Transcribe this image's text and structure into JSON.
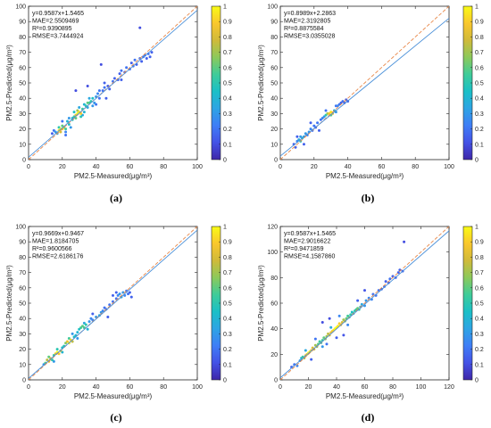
{
  "colormap": {
    "stops": [
      "#3e26a8",
      "#4452e6",
      "#3f7df6",
      "#2ea4e4",
      "#1bbfc7",
      "#3fcc99",
      "#8cc95b",
      "#d0ba3a",
      "#f9c72d",
      "#f9fb15"
    ],
    "tick_labels": [
      "0",
      "0.1",
      "0.2",
      "0.3",
      "0.4",
      "0.5",
      "0.6",
      "0.7",
      "0.8",
      "0.9",
      "1"
    ]
  },
  "line_colors": {
    "fit": "#4a90d9",
    "identity": "#e8884a"
  },
  "chart_data": [
    {
      "type": "scatter",
      "panel_label": "(a)",
      "xlabel": "PM2.5-Measured(μg/m³)",
      "ylabel": "PM2.5-Predicted(μg/m³)",
      "xlim": [
        0,
        100
      ],
      "ylim": [
        0,
        100
      ],
      "xticks": [
        0,
        20,
        40,
        60,
        80,
        100
      ],
      "yticks": [
        0,
        10,
        20,
        30,
        40,
        50,
        60,
        70,
        80,
        90,
        100
      ],
      "stats": [
        "y=0.9587x+1.5465",
        "MAE=2.5509469",
        "R²=0.9390895",
        "RMSE=3.7444924"
      ],
      "fit": {
        "slope": 0.9587,
        "intercept": 1.5465
      },
      "identity_line": true,
      "points": [
        [
          17,
          17,
          0.35
        ],
        [
          18,
          19,
          0.95
        ],
        [
          19,
          20,
          1.0
        ],
        [
          20,
          20,
          0.9
        ],
        [
          21,
          21,
          0.7
        ],
        [
          19,
          18,
          0.8
        ],
        [
          22,
          20,
          0.55
        ],
        [
          20,
          22,
          0.6
        ],
        [
          24,
          23,
          0.45
        ],
        [
          23,
          25,
          0.4
        ],
        [
          18,
          21,
          0.5
        ],
        [
          16,
          18,
          0.3
        ],
        [
          15,
          19,
          0.2
        ],
        [
          22,
          18,
          0.25
        ],
        [
          25,
          21,
          0.3
        ],
        [
          26,
          27,
          0.4
        ],
        [
          27,
          28,
          0.55
        ],
        [
          28,
          29,
          0.85
        ],
        [
          29,
          30,
          1.0
        ],
        [
          30,
          31,
          0.95
        ],
        [
          31,
          30,
          0.9
        ],
        [
          29,
          32,
          0.7
        ],
        [
          32,
          33,
          0.55
        ],
        [
          28,
          27,
          0.6
        ],
        [
          31,
          28,
          0.5
        ],
        [
          27,
          31,
          0.45
        ],
        [
          33,
          31,
          0.4
        ],
        [
          30,
          34,
          0.35
        ],
        [
          34,
          35,
          0.5
        ],
        [
          35,
          37,
          0.6
        ],
        [
          36,
          37,
          0.55
        ],
        [
          37,
          38,
          0.5
        ],
        [
          38,
          40,
          0.45
        ],
        [
          35,
          34,
          0.35
        ],
        [
          39,
          37,
          0.3
        ],
        [
          36,
          40,
          0.35
        ],
        [
          33,
          36,
          0.4
        ],
        [
          40,
          41,
          0.3
        ],
        [
          41,
          43,
          0.25
        ],
        [
          42,
          40,
          0.2
        ],
        [
          44,
          45,
          0.2
        ],
        [
          45,
          47,
          0.2
        ],
        [
          47,
          48,
          0.15
        ],
        [
          48,
          46,
          0.15
        ],
        [
          50,
          51,
          0.2
        ],
        [
          51,
          53,
          0.15
        ],
        [
          53,
          52,
          0.15
        ],
        [
          54,
          56,
          0.15
        ],
        [
          55,
          58,
          0.2
        ],
        [
          57,
          57,
          0.15
        ],
        [
          58,
          60,
          0.2
        ],
        [
          60,
          59,
          0.2
        ],
        [
          61,
          63,
          0.15
        ],
        [
          62,
          61,
          0.2
        ],
        [
          63,
          65,
          0.2
        ],
        [
          64,
          62,
          0.15
        ],
        [
          66,
          66,
          0.2
        ],
        [
          67,
          64,
          0.15
        ],
        [
          68,
          67,
          0.2
        ],
        [
          69,
          68,
          0.2
        ],
        [
          70,
          66,
          0.15
        ],
        [
          71,
          69,
          0.2
        ],
        [
          72,
          67,
          0.15
        ],
        [
          73,
          70,
          0.15
        ],
        [
          66,
          86,
          0.1
        ],
        [
          43,
          62,
          0.1
        ],
        [
          35,
          48,
          0.1
        ],
        [
          28,
          45,
          0.1
        ],
        [
          26,
          26,
          0.45
        ],
        [
          24,
          27,
          0.3
        ],
        [
          32,
          29,
          0.35
        ],
        [
          38,
          35,
          0.3
        ],
        [
          46,
          40,
          0.15
        ],
        [
          40,
          36,
          0.2
        ],
        [
          14,
          17,
          0.15
        ],
        [
          22,
          16,
          0.2
        ],
        [
          20,
          25,
          0.2
        ],
        [
          42,
          45,
          0.2
        ],
        [
          55,
          52,
          0.15
        ],
        [
          45,
          50,
          0.15
        ]
      ]
    },
    {
      "type": "scatter",
      "panel_label": "(b)",
      "xlabel": "PM2.5-Measured(μg/m³)",
      "ylabel": "PM2.5-Predicted(μg/m³)",
      "xlim": [
        0,
        100
      ],
      "ylim": [
        0,
        100
      ],
      "xticks": [
        0,
        20,
        40,
        60,
        80,
        100
      ],
      "yticks": [
        0,
        10,
        20,
        30,
        40,
        50,
        60,
        70,
        80,
        90,
        100
      ],
      "stats": [
        "y=0.8989x+2.2863",
        "MAE=2.3192805",
        "R²=0.8875584",
        "RMSE=3.0355028"
      ],
      "fit": {
        "slope": 0.8989,
        "intercept": 2.2863
      },
      "identity_line": true,
      "points": [
        [
          8,
          10,
          0.15
        ],
        [
          10,
          12,
          0.25
        ],
        [
          11,
          13,
          0.35
        ],
        [
          12,
          12,
          0.45
        ],
        [
          13,
          14,
          0.4
        ],
        [
          14,
          15,
          0.35
        ],
        [
          12,
          15,
          0.3
        ],
        [
          15,
          17,
          0.3
        ],
        [
          16,
          16,
          0.25
        ],
        [
          17,
          18,
          0.3
        ],
        [
          18,
          20,
          0.25
        ],
        [
          19,
          19,
          0.2
        ],
        [
          20,
          22,
          0.2
        ],
        [
          21,
          21,
          0.15
        ],
        [
          22,
          24,
          0.2
        ],
        [
          24,
          26,
          0.2
        ],
        [
          25,
          27,
          0.25
        ],
        [
          26,
          28,
          0.3
        ],
        [
          27,
          29,
          0.5
        ],
        [
          28,
          30,
          0.7
        ],
        [
          29,
          30,
          0.9
        ],
        [
          30,
          31,
          0.95
        ],
        [
          31,
          30,
          0.8
        ],
        [
          30,
          29,
          0.6
        ],
        [
          32,
          32,
          0.4
        ],
        [
          33,
          31,
          0.3
        ],
        [
          34,
          35,
          0.25
        ],
        [
          35,
          36,
          0.2
        ],
        [
          36,
          37,
          0.15
        ],
        [
          37,
          38,
          0.2
        ],
        [
          38,
          37,
          0.15
        ],
        [
          40,
          38,
          0.15
        ],
        [
          39,
          39,
          0.15
        ],
        [
          14,
          10,
          0.15
        ],
        [
          9,
          8,
          0.15
        ],
        [
          18,
          24,
          0.15
        ],
        [
          23,
          19,
          0.15
        ],
        [
          33,
          35,
          0.2
        ],
        [
          27,
          32,
          0.2
        ],
        [
          10,
          15,
          0.15
        ]
      ]
    },
    {
      "type": "scatter",
      "panel_label": "(c)",
      "xlabel": "PM2.5-Measured(μg/m³)",
      "ylabel": "PM2.5-Predicted(μg/m³)",
      "xlim": [
        0,
        100
      ],
      "ylim": [
        0,
        100
      ],
      "xticks": [
        0,
        20,
        40,
        60,
        80,
        100
      ],
      "yticks": [
        0,
        10,
        20,
        30,
        40,
        50,
        60,
        70,
        80,
        90,
        100
      ],
      "stats": [
        "y=0.9669x+0.9467",
        "MAE=1.8184705",
        "R²=0.9600566",
        "RMSE=2.6186176"
      ],
      "fit": {
        "slope": 0.9669,
        "intercept": 0.9467
      },
      "identity_line": true,
      "points": [
        [
          10,
          11,
          0.6
        ],
        [
          11,
          13,
          0.75
        ],
        [
          12,
          12,
          0.85
        ],
        [
          13,
          14,
          0.8
        ],
        [
          12,
          15,
          0.6
        ],
        [
          14,
          13,
          0.5
        ],
        [
          15,
          16,
          0.55
        ],
        [
          16,
          17,
          0.85
        ],
        [
          17,
          18,
          1.0
        ],
        [
          18,
          17,
          0.9
        ],
        [
          19,
          19,
          0.7
        ],
        [
          17,
          20,
          0.5
        ],
        [
          20,
          21,
          0.45
        ],
        [
          21,
          22,
          0.5
        ],
        [
          22,
          24,
          0.65
        ],
        [
          23,
          25,
          0.85
        ],
        [
          24,
          24,
          1.0
        ],
        [
          25,
          26,
          0.9
        ],
        [
          26,
          25,
          0.75
        ],
        [
          24,
          27,
          0.55
        ],
        [
          27,
          28,
          0.45
        ],
        [
          28,
          29,
          0.4
        ],
        [
          29,
          31,
          0.4
        ],
        [
          30,
          33,
          0.45
        ],
        [
          31,
          34,
          0.55
        ],
        [
          32,
          35,
          0.6
        ],
        [
          33,
          34,
          0.55
        ],
        [
          34,
          36,
          0.5
        ],
        [
          35,
          33,
          0.4
        ],
        [
          33,
          37,
          0.35
        ],
        [
          36,
          38,
          0.3
        ],
        [
          37,
          40,
          0.25
        ],
        [
          38,
          39,
          0.25
        ],
        [
          40,
          41,
          0.3
        ],
        [
          42,
          42,
          0.35
        ],
        [
          43,
          44,
          0.3
        ],
        [
          44,
          45,
          0.25
        ],
        [
          45,
          47,
          0.2
        ],
        [
          46,
          46,
          0.2
        ],
        [
          48,
          49,
          0.2
        ],
        [
          50,
          51,
          0.2
        ],
        [
          52,
          53,
          0.2
        ],
        [
          53,
          55,
          0.25
        ],
        [
          54,
          56,
          0.3
        ],
        [
          55,
          54,
          0.35
        ],
        [
          56,
          57,
          0.3
        ],
        [
          57,
          55,
          0.25
        ],
        [
          58,
          58,
          0.2
        ],
        [
          59,
          56,
          0.2
        ],
        [
          60,
          57,
          0.15
        ],
        [
          61,
          54,
          0.15
        ],
        [
          50,
          55,
          0.15
        ],
        [
          52,
          57,
          0.15
        ],
        [
          47,
          41,
          0.15
        ],
        [
          38,
          43,
          0.15
        ],
        [
          26,
          30,
          0.3
        ],
        [
          29,
          27,
          0.3
        ],
        [
          15,
          12,
          0.3
        ],
        [
          9,
          10,
          0.3
        ],
        [
          20,
          18,
          0.4
        ]
      ]
    },
    {
      "type": "scatter",
      "panel_label": "(d)",
      "xlabel": "PM2.5-Measured(μg/m³)",
      "ylabel": "PM2.5-Predicted(μg/m³)",
      "xlim": [
        0,
        120
      ],
      "ylim": [
        0,
        120
      ],
      "xticks": [
        0,
        20,
        40,
        60,
        80,
        100,
        120
      ],
      "yticks": [
        0,
        20,
        40,
        60,
        80,
        100,
        120
      ],
      "stats": [
        "y=0.9587x+1.5465",
        "MAE=2.9016622",
        "R²=0.9471859",
        "RMSE=4.1587860"
      ],
      "fit": {
        "slope": 0.9587,
        "intercept": 1.5465
      },
      "identity_line": true,
      "points": [
        [
          8,
          10,
          0.15
        ],
        [
          10,
          12,
          0.2
        ],
        [
          12,
          11,
          0.25
        ],
        [
          14,
          15,
          0.3
        ],
        [
          15,
          17,
          0.4
        ],
        [
          16,
          18,
          0.55
        ],
        [
          17,
          17,
          0.7
        ],
        [
          18,
          19,
          0.8
        ],
        [
          19,
          20,
          0.9
        ],
        [
          20,
          21,
          1.0
        ],
        [
          21,
          22,
          0.95
        ],
        [
          22,
          23,
          0.85
        ],
        [
          23,
          25,
          0.8
        ],
        [
          24,
          24,
          0.75
        ],
        [
          25,
          27,
          0.7
        ],
        [
          26,
          26,
          0.65
        ],
        [
          27,
          28,
          0.6
        ],
        [
          28,
          30,
          0.55
        ],
        [
          29,
          29,
          0.5
        ],
        [
          30,
          31,
          0.55
        ],
        [
          31,
          33,
          0.6
        ],
        [
          32,
          32,
          0.65
        ],
        [
          33,
          34,
          0.7
        ],
        [
          34,
          36,
          0.75
        ],
        [
          35,
          35,
          0.8
        ],
        [
          36,
          37,
          0.85
        ],
        [
          37,
          38,
          0.9
        ],
        [
          38,
          39,
          0.95
        ],
        [
          39,
          40,
          1.0
        ],
        [
          40,
          41,
          1.0
        ],
        [
          41,
          42,
          0.95
        ],
        [
          42,
          44,
          0.9
        ],
        [
          43,
          43,
          0.85
        ],
        [
          44,
          45,
          0.8
        ],
        [
          45,
          47,
          0.7
        ],
        [
          46,
          46,
          0.65
        ],
        [
          47,
          48,
          0.6
        ],
        [
          48,
          50,
          0.55
        ],
        [
          49,
          49,
          0.5
        ],
        [
          50,
          51,
          0.5
        ],
        [
          51,
          53,
          0.45
        ],
        [
          52,
          52,
          0.45
        ],
        [
          53,
          54,
          0.5
        ],
        [
          54,
          55,
          0.55
        ],
        [
          55,
          56,
          0.6
        ],
        [
          56,
          55,
          0.5
        ],
        [
          57,
          57,
          0.4
        ],
        [
          58,
          59,
          0.35
        ],
        [
          60,
          58,
          0.3
        ],
        [
          61,
          62,
          0.3
        ],
        [
          63,
          64,
          0.25
        ],
        [
          65,
          63,
          0.25
        ],
        [
          66,
          67,
          0.2
        ],
        [
          68,
          66,
          0.2
        ],
        [
          70,
          70,
          0.2
        ],
        [
          72,
          71,
          0.15
        ],
        [
          74,
          73,
          0.2
        ],
        [
          75,
          77,
          0.15
        ],
        [
          77,
          76,
          0.15
        ],
        [
          78,
          79,
          0.2
        ],
        [
          80,
          81,
          0.15
        ],
        [
          82,
          80,
          0.15
        ],
        [
          84,
          84,
          0.15
        ],
        [
          85,
          86,
          0.15
        ],
        [
          87,
          85,
          0.15
        ],
        [
          88,
          108,
          0.1
        ],
        [
          30,
          45,
          0.1
        ],
        [
          35,
          48,
          0.1
        ],
        [
          60,
          70,
          0.12
        ],
        [
          45,
          35,
          0.12
        ],
        [
          22,
          16,
          0.15
        ],
        [
          40,
          33,
          0.15
        ],
        [
          55,
          62,
          0.15
        ],
        [
          25,
          32,
          0.2
        ],
        [
          33,
          28,
          0.2
        ],
        [
          48,
          43,
          0.25
        ],
        [
          42,
          50,
          0.25
        ],
        [
          30,
          26,
          0.3
        ],
        [
          36,
          41,
          0.35
        ],
        [
          18,
          23,
          0.35
        ]
      ]
    }
  ]
}
